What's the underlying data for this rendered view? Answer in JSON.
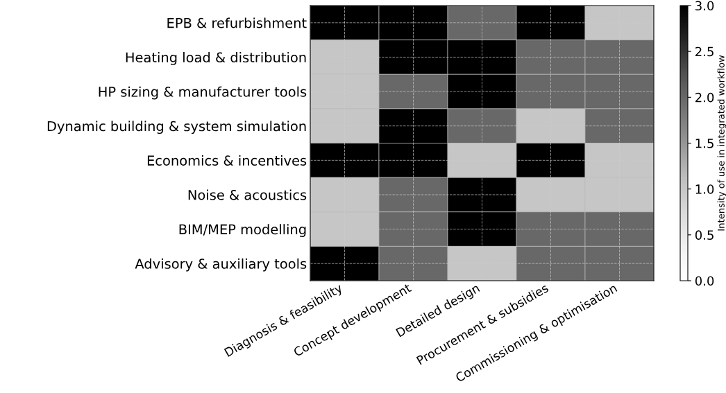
{
  "chart_data": {
    "type": "heatmap",
    "categories": [
      "Diagnosis & feasibility",
      "Concept development",
      "Detailed design",
      "Procurement & subsidies",
      "Commissioning & optimisation"
    ],
    "y_categories": [
      "EPB & refurbishment",
      "Heating load & distribution",
      "HP sizing & manufacturer tools",
      "Dynamic building & system simulation",
      "Economics & incentives",
      "Noise & acoustics",
      "BIM/MEP modelling",
      "Advisory & auxiliary tools"
    ],
    "cells": [
      [
        3,
        3,
        2,
        3,
        1
      ],
      [
        1,
        3,
        3,
        2,
        2
      ],
      [
        1,
        2,
        3,
        2,
        2
      ],
      [
        1,
        3,
        2,
        1,
        2
      ],
      [
        3,
        3,
        1,
        3,
        1
      ],
      [
        1,
        2,
        3,
        1,
        1
      ],
      [
        1,
        2,
        3,
        2,
        2
      ],
      [
        3,
        2,
        1,
        2,
        2
      ]
    ],
    "clim": [
      0,
      3
    ],
    "cticks": [
      {
        "value": 0,
        "label": "0.0"
      },
      0.5,
      {
        "value": 1,
        "label": "1.0"
      },
      1.5,
      {
        "value": 2,
        "label": "2.0"
      },
      2.5,
      {
        "value": 3,
        "label": "3.0"
      }
    ],
    "clabel": "Intensity of use in integrated workflow",
    "grid": true
  }
}
